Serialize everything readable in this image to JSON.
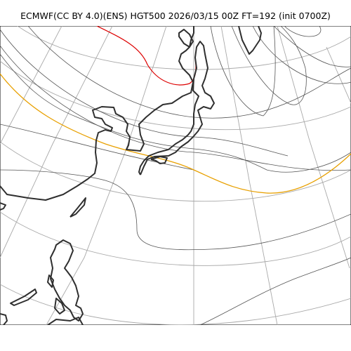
{
  "title": "ECMWF(CC BY 4.0)(ENS) HGT500 2026/03/15 00Z FT=192 (init 0700Z)",
  "colors": {
    "graticule": "#a9a9a9",
    "contour": "#555555",
    "coastline": "#2f2f2f",
    "contour_5400": "#e8a000",
    "contour_5700_red": "#dd0000"
  }
}
